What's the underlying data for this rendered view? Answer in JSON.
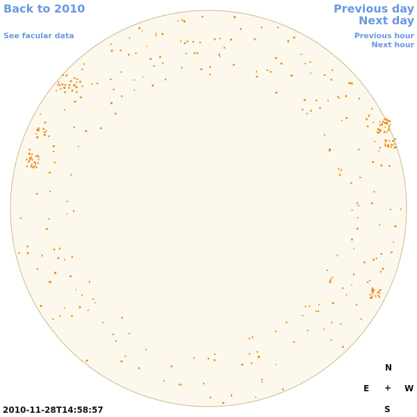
{
  "nav": {
    "back": "Back to 2010",
    "facular": "See facular data",
    "prev_day": "Previous day",
    "next_day": "Next day",
    "prev_hour": "Previous hour",
    "next_hour": "Next hour"
  },
  "timestamp": "2010-11-28T14:58:57",
  "compass": {
    "n": "N",
    "e": "E",
    "w": "W",
    "s": "S",
    "center": "+"
  },
  "colors": {
    "disk_fill": "#fdf8ec",
    "disk_edge": "#c9b793",
    "spot": "#e98a12",
    "link": "#6a98e0"
  }
}
